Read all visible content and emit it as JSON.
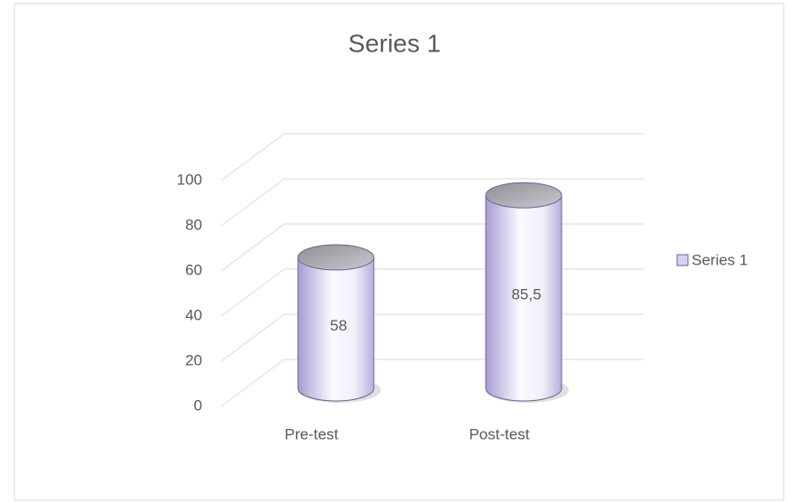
{
  "chart_data": {
    "type": "bar3d",
    "title": "Series 1",
    "categories": [
      "Pre-test",
      "Post-test"
    ],
    "series": [
      {
        "name": "Series 1",
        "color": "#d9d2ef",
        "values": [
          58,
          85.5
        ],
        "value_labels": [
          "58",
          "85,5"
        ]
      }
    ],
    "ylim": [
      0,
      100
    ],
    "yticks": [
      0,
      20,
      40,
      60,
      80,
      100
    ],
    "grid": true,
    "legend": "right"
  }
}
